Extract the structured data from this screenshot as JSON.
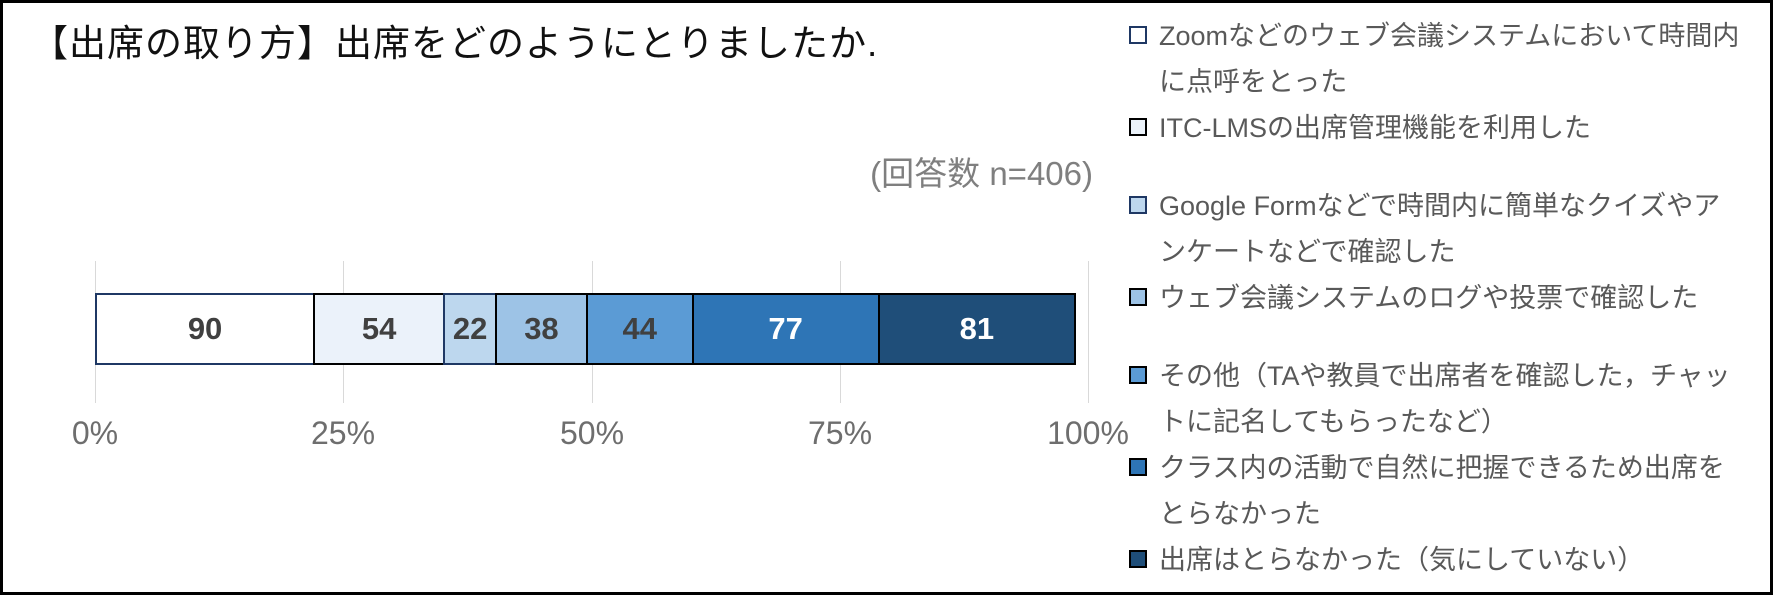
{
  "title": "【出席の取り方】出席をどのようにとりましたか.",
  "annotation": "(回答数 n=406)",
  "chart_data": {
    "type": "bar",
    "stacked": true,
    "orientation": "horizontal",
    "title": "【出席の取り方】出席をどのようにとりましたか.",
    "annotation": "(回答数 n=406)",
    "n_total": 406,
    "legend_position": "right",
    "x_axis": {
      "ticks": [
        "0%",
        "25%",
        "50%",
        "75%",
        "100%"
      ],
      "range_percent": [
        0,
        100
      ],
      "gridlines": true,
      "gridline_color": "#D9D9D9",
      "tick_color": "#6E6E6E"
    },
    "series": [
      {
        "name": "Zoomなどのウェブ会議システムにおいて時間内に点呼をとった",
        "value": 90,
        "fill": "#FFFFFF",
        "border": "#1F3864",
        "label_color": "#404040"
      },
      {
        "name": "ITC-LMSの出席管理機能を利用した",
        "value": 54,
        "fill": "#EBF2FA",
        "border": "#000000",
        "label_color": "#404040"
      },
      {
        "name": "Google Formなどで時間内に簡単なクイズやアンケートなどで確認した",
        "value": 22,
        "fill": "#BDD7EE",
        "border": "#1F3864",
        "label_color": "#404040"
      },
      {
        "name": "ウェブ会議システムのログや投票で確認した",
        "value": 38,
        "fill": "#9DC3E6",
        "border": "#000000",
        "label_color": "#404040"
      },
      {
        "name": "その他（TAや教員で出席者を確認した，チャットに記名してもらったなど）",
        "value": 44,
        "fill": "#5B9BD5",
        "border": "#000000",
        "label_color": "#404040"
      },
      {
        "name": "クラス内の活動で自然に把握できるため出席をとらなかった",
        "value": 77,
        "fill": "#2E75B6",
        "border": "#000000",
        "label_color": "#FFFFFF"
      },
      {
        "name": "出席はとらなかった（気にしていない）",
        "value": 81,
        "fill": "#1F4E79",
        "border": "#000000",
        "label_color": "#FFFFFF"
      }
    ]
  },
  "legend": {
    "text_color": "#595959",
    "groups": [
      {
        "items": [
          {
            "series_index": 0,
            "lines": [
              "Zoomなどのウェブ会議システムにおいて時間内",
              "に点呼をとった"
            ]
          },
          {
            "series_index": 1,
            "lines": [
              "ITC-LMSの出席管理機能を利用した"
            ]
          }
        ]
      },
      {
        "items": [
          {
            "series_index": 2,
            "lines": [
              "Google Formなどで時間内に簡単なクイズやア",
              "ンケートなどで確認した"
            ]
          },
          {
            "series_index": 3,
            "lines": [
              "ウェブ会議システムのログや投票で確認した"
            ]
          }
        ]
      },
      {
        "items": [
          {
            "series_index": 4,
            "lines": [
              "その他（TAや教員で出席者を確認した，チャッ",
              "トに記名してもらったなど）"
            ]
          },
          {
            "series_index": 5,
            "lines": [
              "クラス内の活動で自然に把握できるため出席を",
              "とらなかった"
            ]
          },
          {
            "series_index": 6,
            "lines": [
              "出席はとらなかった（気にしていない）"
            ]
          }
        ]
      }
    ]
  }
}
